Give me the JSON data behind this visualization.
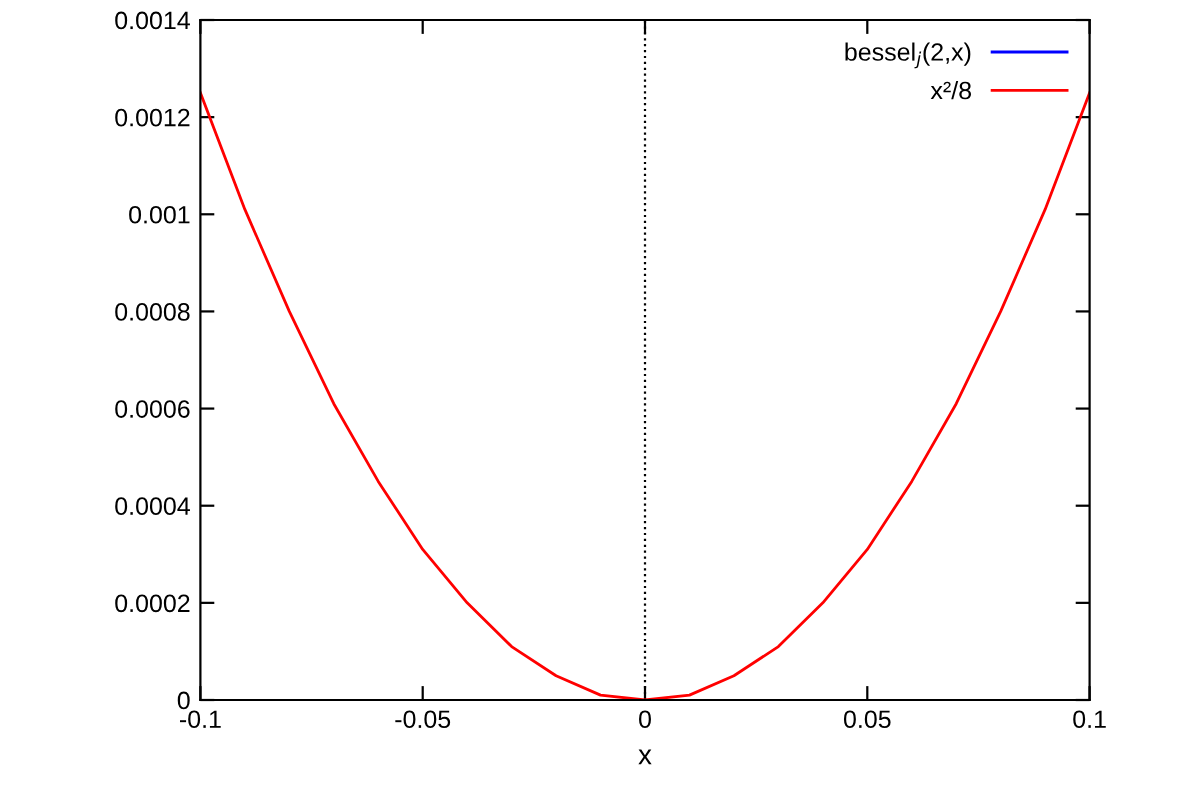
{
  "chart_data": {
    "type": "line",
    "xlabel": "x",
    "x": [
      -0.1,
      -0.09,
      -0.08,
      -0.07,
      -0.06,
      -0.05,
      -0.04,
      -0.03,
      -0.02,
      -0.01,
      0,
      0.01,
      0.02,
      0.03,
      0.04,
      0.05,
      0.06,
      0.07,
      0.08,
      0.09,
      0.1
    ],
    "series": [
      {
        "name": "bessel$_{j}$(2,x)",
        "color": "#0000ff",
        "values": [
          null,
          null,
          null,
          null,
          null,
          null,
          null,
          null,
          null,
          null,
          null,
          null,
          null,
          null,
          null,
          null,
          null,
          null,
          null,
          null,
          null
        ]
      },
      {
        "name": "x²/8",
        "color": "#ff0000",
        "values": [
          0.00125,
          0.00101,
          0.0008,
          0.00061,
          0.00045,
          0.00031,
          0.0002,
          0.00011,
          5e-05,
          1e-05,
          0,
          1e-05,
          5e-05,
          0.00011,
          0.0002,
          0.00031,
          0.00045,
          0.00061,
          0.0008,
          0.00101,
          0.00125
        ]
      }
    ],
    "xlim": [
      -0.1,
      0.1
    ],
    "xticks": [
      -0.1,
      -0.05,
      0,
      0.05,
      0.1
    ],
    "ylim": [
      0,
      0.0014
    ],
    "yticks": [
      0,
      0.0002,
      0.0004,
      0.0006,
      0.0008,
      0.001,
      0.0012,
      0.0014
    ],
    "ref_lines": [
      {
        "axis": "x",
        "value": 0,
        "color": "#000000",
        "line_style": "dotted"
      }
    ],
    "legend": "top right",
    "grid": false,
    "marker": "none",
    "line_style": "solid"
  }
}
